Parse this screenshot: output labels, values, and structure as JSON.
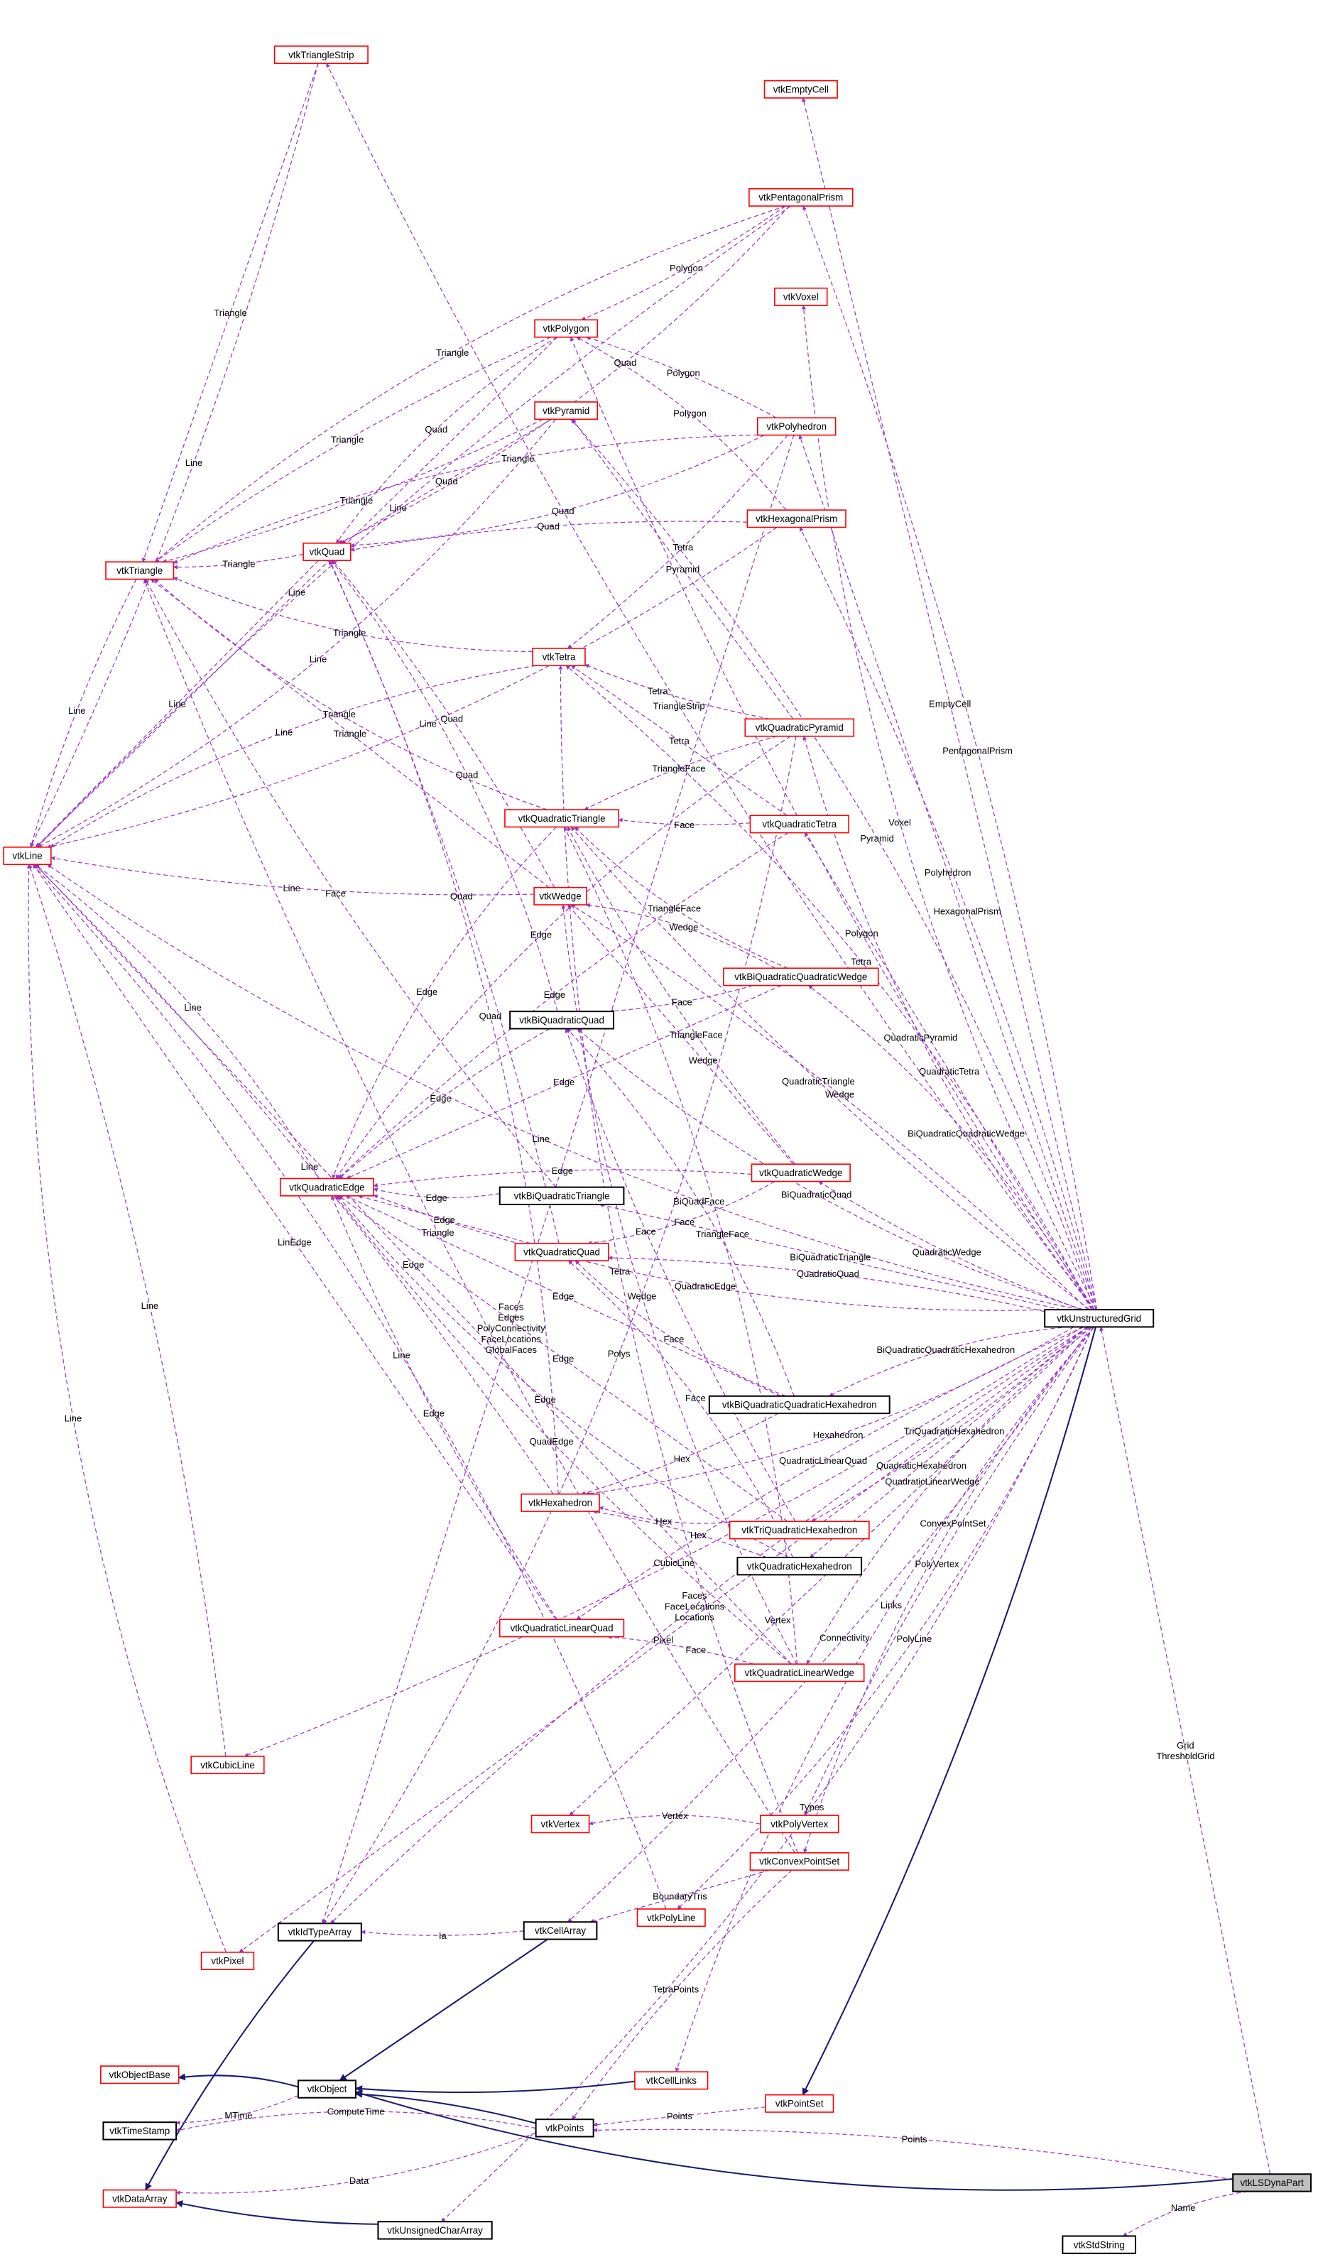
{
  "colors": {
    "usage_edge": "#9a32cd",
    "inheritance_edge": "#191970",
    "incomplete_border": "#ff0000",
    "complete_border": "#000000",
    "focus_fill": "#bfbfbf"
  },
  "nodes": [
    {
      "id": "vtkTriangleStrip",
      "border": "red"
    },
    {
      "id": "vtkEmptyCell",
      "border": "red"
    },
    {
      "id": "vtkPentagonalPrism",
      "border": "red"
    },
    {
      "id": "vtkVoxel",
      "border": "red"
    },
    {
      "id": "vtkPolygon",
      "border": "red"
    },
    {
      "id": "vtkPyramid",
      "border": "red"
    },
    {
      "id": "vtkPolyhedron",
      "border": "red"
    },
    {
      "id": "vtkHexagonalPrism",
      "border": "red"
    },
    {
      "id": "vtkQuad",
      "border": "red"
    },
    {
      "id": "vtkTriangle",
      "border": "red"
    },
    {
      "id": "vtkTetra",
      "border": "red"
    },
    {
      "id": "vtkQuadraticPyramid",
      "border": "red"
    },
    {
      "id": "vtkQuadraticTriangle",
      "border": "red"
    },
    {
      "id": "vtkQuadraticTetra",
      "border": "red"
    },
    {
      "id": "vtkLine",
      "border": "red"
    },
    {
      "id": "vtkWedge",
      "border": "red"
    },
    {
      "id": "vtkBiQuadraticQuadraticWedge",
      "border": "red"
    },
    {
      "id": "vtkBiQuadraticQuad",
      "border": "black"
    },
    {
      "id": "vtkQuadraticWedge",
      "border": "red"
    },
    {
      "id": "vtkQuadraticEdge",
      "border": "red"
    },
    {
      "id": "vtkBiQuadraticTriangle",
      "border": "black"
    },
    {
      "id": "vtkQuadraticQuad",
      "border": "red"
    },
    {
      "id": "vtkUnstructuredGrid",
      "border": "black"
    },
    {
      "id": "vtkBiQuadraticQuadraticHexahedron",
      "border": "black"
    },
    {
      "id": "vtkHexahedron",
      "border": "red"
    },
    {
      "id": "vtkTriQuadraticHexahedron",
      "border": "red"
    },
    {
      "id": "vtkQuadraticHexahedron",
      "border": "black"
    },
    {
      "id": "vtkQuadraticLinearQuad",
      "border": "red"
    },
    {
      "id": "vtkQuadraticLinearWedge",
      "border": "red"
    },
    {
      "id": "vtkCubicLine",
      "border": "red"
    },
    {
      "id": "vtkVertex",
      "border": "red"
    },
    {
      "id": "vtkPolyVertex",
      "border": "red"
    },
    {
      "id": "vtkConvexPointSet",
      "border": "red"
    },
    {
      "id": "vtkPolyLine",
      "border": "red"
    },
    {
      "id": "vtkIdTypeArray",
      "border": "black"
    },
    {
      "id": "vtkCellArray",
      "border": "black"
    },
    {
      "id": "vtkPixel",
      "border": "red"
    },
    {
      "id": "vtkObjectBase",
      "border": "red"
    },
    {
      "id": "vtkObject",
      "border": "black"
    },
    {
      "id": "vtkCellLinks",
      "border": "red"
    },
    {
      "id": "vtkPointSet",
      "border": "red"
    },
    {
      "id": "vtkTimeStamp",
      "border": "black"
    },
    {
      "id": "vtkPoints",
      "border": "black"
    },
    {
      "id": "vtkLSDynaPart",
      "border": "grey"
    },
    {
      "id": "vtkDataArray",
      "border": "red"
    },
    {
      "id": "vtkUnsignedCharArray",
      "border": "black"
    },
    {
      "id": "vtkStdString",
      "border": "black"
    }
  ],
  "edges": [
    [
      "vtkUnstructuredGrid",
      "vtkLine",
      "Line",
      "usage"
    ],
    [
      "vtkUnstructuredGrid",
      "vtkTriangleStrip",
      "TriangleStrip",
      "usage"
    ],
    [
      "vtkUnstructuredGrid",
      "vtkEmptyCell",
      "EmptyCell",
      "usage"
    ],
    [
      "vtkUnstructuredGrid",
      "vtkPentagonalPrism",
      "PentagonalPrism",
      "usage"
    ],
    [
      "vtkUnstructuredGrid",
      "vtkPyramid",
      "Pyramid",
      "usage"
    ],
    [
      "vtkUnstructuredGrid",
      "vtkVoxel",
      "Voxel",
      "usage"
    ],
    [
      "vtkUnstructuredGrid",
      "vtkPolygon",
      "Polygon",
      "usage"
    ],
    [
      "vtkUnstructuredGrid",
      "vtkPolyhedron",
      "Polyhedron",
      "usage"
    ],
    [
      "vtkUnstructuredGrid",
      "vtkHexagonalPrism",
      "HexagonalPrism",
      "usage"
    ],
    [
      "vtkUnstructuredGrid",
      "vtkTetra",
      "Tetra",
      "usage"
    ],
    [
      "vtkUnstructuredGrid",
      "vtkQuadraticPyramid",
      "QuadraticPyramid",
      "usage"
    ],
    [
      "vtkUnstructuredGrid",
      "vtkQuadraticTriangle",
      "QuadraticTriangle",
      "usage"
    ],
    [
      "vtkUnstructuredGrid",
      "vtkQuadraticTetra",
      "QuadraticTetra",
      "usage"
    ],
    [
      "vtkUnstructuredGrid",
      "vtkWedge",
      "Wedge",
      "usage"
    ],
    [
      "vtkUnstructuredGrid",
      "vtkBiQuadraticQuadraticWedge",
      "BiQuadraticQuadraticWedge",
      "usage"
    ],
    [
      "vtkUnstructuredGrid",
      "vtkBiQuadraticQuad",
      "BiQuadraticQuad",
      "usage"
    ],
    [
      "vtkUnstructuredGrid",
      "vtkQuadraticWedge",
      "QuadraticWedge",
      "usage"
    ],
    [
      "vtkUnstructuredGrid",
      "vtkBiQuadraticTriangle",
      "BiQuadraticTriangle",
      "usage"
    ],
    [
      "vtkUnstructuredGrid",
      "vtkQuadraticQuad",
      "QuadraticQuad",
      "usage"
    ],
    [
      "vtkUnstructuredGrid",
      "vtkBiQuadraticQuadraticHexahedron",
      "BiQuadraticQuadraticHexahedron",
      "usage"
    ],
    [
      "vtkUnstructuredGrid",
      "vtkHexahedron",
      "Hexahedron",
      "usage"
    ],
    [
      "vtkUnstructuredGrid",
      "vtkTriQuadraticHexahedron",
      "TriQuadraticHexahedron",
      "usage"
    ],
    [
      "vtkUnstructuredGrid",
      "vtkQuadraticHexahedron",
      "QuadraticHexahedron",
      "usage"
    ],
    [
      "vtkUnstructuredGrid",
      "vtkQuadraticLinearQuad",
      "QuadraticLinearQuad",
      "usage"
    ],
    [
      "vtkUnstructuredGrid",
      "vtkQuadraticLinearWedge",
      "QuadraticLinearWedge",
      "usage"
    ],
    [
      "vtkUnstructuredGrid",
      "vtkQuadraticEdge",
      "QuadraticEdge",
      "usage"
    ],
    [
      "vtkUnstructuredGrid",
      "vtkCubicLine",
      "CubicLine",
      "usage"
    ],
    [
      "vtkUnstructuredGrid",
      "vtkVertex",
      "Vertex",
      "usage"
    ],
    [
      "vtkUnstructuredGrid",
      "vtkPolyVertex",
      "PolyVertex",
      "usage"
    ],
    [
      "vtkUnstructuredGrid",
      "vtkConvexPointSet",
      "ConvexPointSet",
      "usage"
    ],
    [
      "vtkUnstructuredGrid",
      "vtkPolyLine",
      "PolyLine",
      "usage"
    ],
    [
      "vtkUnstructuredGrid",
      "vtkCellArray",
      "Connectivity",
      "usage"
    ],
    [
      "vtkUnstructuredGrid",
      "vtkPixel",
      "Pixel",
      "usage"
    ],
    [
      "vtkUnstructuredGrid",
      "vtkIdTypeArray",
      "Faces\nFaceLocations\nLocations",
      "usage"
    ],
    [
      "vtkUnstructuredGrid",
      "vtkCellLinks",
      "Links",
      "usage"
    ],
    [
      "vtkUnstructuredGrid",
      "vtkUnsignedCharArray",
      "Types",
      "usage"
    ],
    [
      "vtkUnstructuredGrid",
      "vtkPointSet",
      "",
      "inherit"
    ],
    [
      "vtkLSDynaPart",
      "vtkUnstructuredGrid",
      "Grid\nThresholdGrid",
      "usage"
    ],
    [
      "vtkLSDynaPart",
      "vtkPoints",
      "Points",
      "usage"
    ],
    [
      "vtkLSDynaPart",
      "vtkStdString",
      "Name",
      "usage"
    ],
    [
      "vtkLSDynaPart",
      "vtkObject",
      "",
      "inherit"
    ],
    [
      "vtkTriangleStrip",
      "vtkLine",
      "Line",
      "usage"
    ],
    [
      "vtkTriangleStrip",
      "vtkTriangle",
      "Triangle",
      "usage"
    ],
    [
      "vtkPentagonalPrism",
      "vtkLine",
      "Line",
      "usage"
    ],
    [
      "vtkPentagonalPrism",
      "vtkTriangle",
      "Triangle",
      "usage"
    ],
    [
      "vtkPentagonalPrism",
      "vtkQuad",
      "Quad",
      "usage"
    ],
    [
      "vtkPentagonalPrism",
      "vtkPolygon",
      "Polygon",
      "usage"
    ],
    [
      "vtkPolygon",
      "vtkLine",
      "Line",
      "usage"
    ],
    [
      "vtkPolygon",
      "vtkTriangle",
      "Triangle",
      "usage"
    ],
    [
      "vtkPolygon",
      "vtkQuad",
      "Quad",
      "usage"
    ],
    [
      "vtkPyramid",
      "vtkLine",
      "Line",
      "usage"
    ],
    [
      "vtkPyramid",
      "vtkTriangle",
      "Triangle",
      "usage"
    ],
    [
      "vtkPyramid",
      "vtkQuad",
      "Quad",
      "usage"
    ],
    [
      "vtkPolyhedron",
      "vtkPolygon",
      "Polygon",
      "usage"
    ],
    [
      "vtkPolyhedron",
      "vtkTriangle",
      "Triangle",
      "usage"
    ],
    [
      "vtkPolyhedron",
      "vtkQuad",
      "Quad",
      "usage"
    ],
    [
      "vtkPolyhedron",
      "vtkTetra",
      "Tetra",
      "usage"
    ],
    [
      "vtkPolyhedron",
      "vtkIdTypeArray",
      "Faces\nEdges\nPolyConnectivity\nFaceLocations\nGlobalFaces",
      "usage"
    ],
    [
      "vtkHexagonalPrism",
      "vtkQuad",
      "Quad",
      "usage"
    ],
    [
      "vtkHexagonalPrism",
      "vtkPolygon",
      "Polygon",
      "usage"
    ],
    [
      "vtkHexagonalPrism",
      "vtkLine",
      "Line",
      "usage"
    ],
    [
      "vtkQuad",
      "vtkTriangle",
      "Triangle",
      "usage"
    ],
    [
      "vtkQuad",
      "vtkLine",
      "Line",
      "usage"
    ],
    [
      "vtkTriangle",
      "vtkLine",
      "Line",
      "usage"
    ],
    [
      "vtkTetra",
      "vtkLine",
      "Line",
      "usage"
    ],
    [
      "vtkTetra",
      "vtkTriangle",
      "Triangle",
      "usage"
    ],
    [
      "vtkQuadraticPyramid",
      "vtkTetra",
      "Tetra",
      "usage"
    ],
    [
      "vtkQuadraticPyramid",
      "vtkPyramid",
      "Pyramid",
      "usage"
    ],
    [
      "vtkQuadraticPyramid",
      "vtkQuadraticTriangle",
      "TriangleFace",
      "usage"
    ],
    [
      "vtkQuadraticPyramid",
      "vtkQuadraticEdge",
      "Edge",
      "usage"
    ],
    [
      "vtkQuadraticPyramid",
      "vtkIdTypeArray",
      "Polys",
      "usage"
    ],
    [
      "vtkQuadraticTetra",
      "vtkQuadraticTriangle",
      "Face",
      "usage"
    ],
    [
      "vtkQuadraticTetra",
      "vtkTetra",
      "Tetra",
      "usage"
    ],
    [
      "vtkQuadraticTetra",
      "vtkQuadraticEdge",
      "Edge",
      "usage"
    ],
    [
      "vtkQuadraticTriangle",
      "vtkQuadraticEdge",
      "Edge",
      "usage"
    ],
    [
      "vtkQuadraticTriangle",
      "vtkTriangle",
      "Triangle",
      "usage"
    ],
    [
      "vtkWedge",
      "vtkLine",
      "Line",
      "usage"
    ],
    [
      "vtkWedge",
      "vtkTriangle",
      "Triangle",
      "usage"
    ],
    [
      "vtkWedge",
      "vtkQuad",
      "Quad",
      "usage"
    ],
    [
      "vtkBiQuadraticQuadraticWedge",
      "vtkWedge",
      "Wedge",
      "usage"
    ],
    [
      "vtkBiQuadraticQuadraticWedge",
      "vtkQuadraticTriangle",
      "TriangleFace",
      "usage"
    ],
    [
      "vtkBiQuadraticQuadraticWedge",
      "vtkBiQuadraticQuad",
      "Face",
      "usage"
    ],
    [
      "vtkBiQuadraticQuadraticWedge",
      "vtkQuadraticEdge",
      "Edge",
      "usage"
    ],
    [
      "vtkBiQuadraticQuad",
      "vtkQuadraticEdge",
      "Edge",
      "usage"
    ],
    [
      "vtkBiQuadraticQuad",
      "vtkQuad",
      "Quad",
      "usage"
    ],
    [
      "vtkQuadraticWedge",
      "vtkQuadraticQuad",
      "Face",
      "usage"
    ],
    [
      "vtkQuadraticWedge",
      "vtkQuadraticTriangle",
      "TriangleFace",
      "usage"
    ],
    [
      "vtkQuadraticWedge",
      "vtkWedge",
      "Wedge",
      "usage"
    ],
    [
      "vtkQuadraticWedge",
      "vtkQuadraticEdge",
      "Edge",
      "usage"
    ],
    [
      "vtkQuadraticEdge",
      "vtkLine",
      "Line",
      "usage"
    ],
    [
      "vtkBiQuadraticTriangle",
      "vtkQuadraticEdge",
      "Edge",
      "usage"
    ],
    [
      "vtkBiQuadraticTriangle",
      "vtkTriangle",
      "Face",
      "usage"
    ],
    [
      "vtkQuadraticQuad",
      "vtkQuadraticEdge",
      "Edge",
      "usage"
    ],
    [
      "vtkQuadraticQuad",
      "vtkQuad",
      "Quad",
      "usage"
    ],
    [
      "vtkBiQuadraticQuadraticHexahedron",
      "vtkBiQuadraticQuad",
      "BiQuadFace",
      "usage"
    ],
    [
      "vtkBiQuadraticQuadraticHexahedron",
      "vtkQuadraticQuad",
      "Face",
      "usage"
    ],
    [
      "vtkBiQuadraticQuadraticHexahedron",
      "vtkHexahedron",
      "Hex",
      "usage"
    ],
    [
      "vtkBiQuadraticQuadraticHexahedron",
      "vtkQuadraticEdge",
      "Edge",
      "usage"
    ],
    [
      "vtkHexahedron",
      "vtkLine",
      "Line",
      "usage"
    ],
    [
      "vtkHexahedron",
      "vtkQuad",
      "Quad",
      "usage"
    ],
    [
      "vtkTriQuadraticHexahedron",
      "vtkHexahedron",
      "Hex",
      "usage"
    ],
    [
      "vtkTriQuadraticHexahedron",
      "vtkBiQuadraticQuad",
      "Face",
      "usage"
    ],
    [
      "vtkTriQuadraticHexahedron",
      "vtkQuadraticEdge",
      "Edge",
      "usage"
    ],
    [
      "vtkQuadraticHexahedron",
      "vtkHexahedron",
      "Hex",
      "usage"
    ],
    [
      "vtkQuadraticHexahedron",
      "vtkQuadraticQuad",
      "Face",
      "usage"
    ],
    [
      "vtkQuadraticHexahedron",
      "vtkQuadraticEdge",
      "Edge",
      "usage"
    ],
    [
      "vtkQuadraticLinearQuad",
      "vtkQuadraticEdge",
      "Edge",
      "usage"
    ],
    [
      "vtkQuadraticLinearQuad",
      "vtkLine",
      "LinEdge",
      "usage"
    ],
    [
      "vtkQuadraticLinearWedge",
      "vtkQuadraticLinearQuad",
      "Face",
      "usage"
    ],
    [
      "vtkQuadraticLinearWedge",
      "vtkQuadraticTriangle",
      "TriangleFace",
      "usage"
    ],
    [
      "vtkQuadraticLinearWedge",
      "vtkWedge",
      "Wedge",
      "usage"
    ],
    [
      "vtkQuadraticLinearWedge",
      "vtkQuadraticEdge",
      "QuadEdge",
      "usage"
    ],
    [
      "vtkQuadraticLinearWedge",
      "vtkLine",
      "Edge",
      "usage"
    ],
    [
      "vtkCubicLine",
      "vtkLine",
      "Line",
      "usage"
    ],
    [
      "vtkPolyVertex",
      "vtkVertex",
      "Vertex",
      "usage"
    ],
    [
      "vtkConvexPointSet",
      "vtkTetra",
      "Tetra",
      "usage"
    ],
    [
      "vtkConvexPointSet",
      "vtkTriangle",
      "Triangle",
      "usage"
    ],
    [
      "vtkConvexPointSet",
      "vtkCellArray",
      "BoundaryTris",
      "usage"
    ],
    [
      "vtkConvexPointSet",
      "vtkPoints",
      "TetraPoints",
      "usage"
    ],
    [
      "vtkPolyLine",
      "vtkLine",
      "Line",
      "usage"
    ],
    [
      "vtkPixel",
      "vtkLine",
      "Line",
      "usage"
    ],
    [
      "vtkCellArray",
      "vtkIdTypeArray",
      "Ia",
      "usage"
    ],
    [
      "vtkCellArray",
      "vtkObject",
      "",
      "inherit"
    ],
    [
      "vtkIdTypeArray",
      "vtkDataArray",
      "",
      "inherit"
    ],
    [
      "vtkObject",
      "vtkObjectBase",
      "",
      "inherit"
    ],
    [
      "vtkObject",
      "vtkTimeStamp",
      "MTime",
      "usage"
    ],
    [
      "vtkCellLinks",
      "vtkObject",
      "",
      "inherit"
    ],
    [
      "vtkPointSet",
      "vtkPoints",
      "Points",
      "usage"
    ],
    [
      "vtkPoints",
      "vtkObject",
      "",
      "inherit"
    ],
    [
      "vtkPoints",
      "vtkTimeStamp",
      "ComputeTime",
      "usage"
    ],
    [
      "vtkPoints",
      "vtkDataArray",
      "Data",
      "usage"
    ],
    [
      "vtkUnsignedCharArray",
      "vtkDataArray",
      "",
      "inherit"
    ]
  ]
}
